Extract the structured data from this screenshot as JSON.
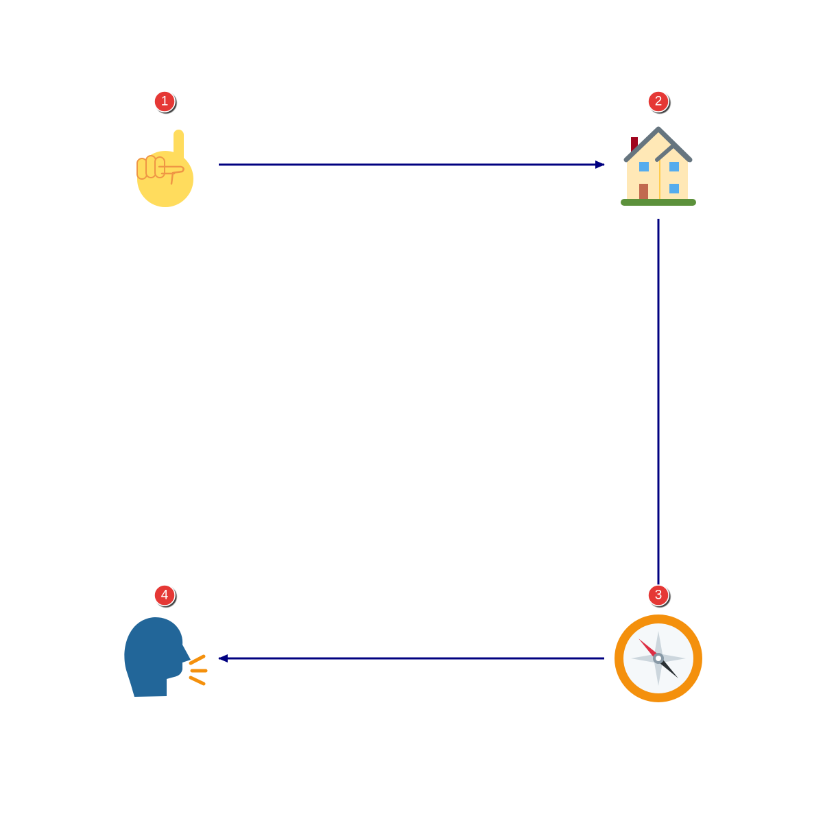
{
  "diagram": {
    "type": "step-flow",
    "connector_color": "#000080",
    "badge_color": "#e53935",
    "steps": [
      {
        "number": "1",
        "icon": "index-finger-pointing-up-icon"
      },
      {
        "number": "2",
        "icon": "house-icon"
      },
      {
        "number": "3",
        "icon": "compass-icon"
      },
      {
        "number": "4",
        "icon": "speaking-head-icon"
      }
    ],
    "connections": [
      {
        "from": "1",
        "to": "2"
      },
      {
        "from": "2",
        "to": "3"
      },
      {
        "from": "3",
        "to": "4"
      }
    ]
  }
}
